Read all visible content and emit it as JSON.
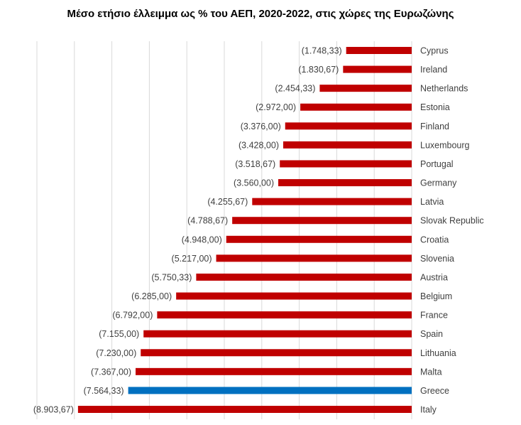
{
  "chart_data": {
    "type": "bar",
    "orientation": "horizontal",
    "title": "Μέσο ετήσιο έλλειμμα ως % του ΑΕΠ, 2020-2022, στις χώρες της Ευρωζώνης",
    "categories": [
      "Cyprus",
      "Ireland",
      "Netherlands",
      "Estonia",
      "Finland",
      "Luxembourg",
      "Portugal",
      "Germany",
      "Latvia",
      "Slovak Republic",
      "Croatia",
      "Slovenia",
      "Austria",
      "Belgium",
      "France",
      "Spain",
      "Lithuania",
      "Malta",
      "Greece",
      "Italy"
    ],
    "values": [
      -1748.33,
      -1830.67,
      -2454.33,
      -2972.0,
      -3376.0,
      -3428.0,
      -3518.67,
      -3560.0,
      -4255.67,
      -4788.67,
      -4948.0,
      -5217.0,
      -5750.33,
      -6285.0,
      -6792.0,
      -7155.0,
      -7230.0,
      -7367.0,
      -7564.33,
      -8903.67
    ],
    "data_labels": [
      "(1.748,33)",
      "(1.830,67)",
      "(2.454,33)",
      "(2.972,00)",
      "(3.376,00)",
      "(3.428,00)",
      "(3.518,67)",
      "(3.560,00)",
      "(4.255,67)",
      "(4.788,67)",
      "(4.948,00)",
      "(5.217,00)",
      "(5.750,33)",
      "(6.285,00)",
      "(6.792,00)",
      "(7.155,00)",
      "(7.230,00)",
      "(7.367,00)",
      "(7.564,33)",
      "(8.903,67)"
    ],
    "xlim": [
      -10000,
      0
    ],
    "grid_step": 1000,
    "grid": true,
    "legend": "none",
    "colors": {
      "default": "#c00000",
      "highlight": "#0070c0",
      "grid": "#d9d9d9"
    },
    "highlight_category": "Greece"
  }
}
